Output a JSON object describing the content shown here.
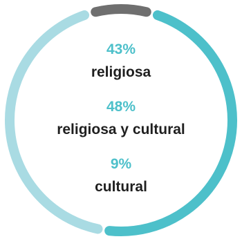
{
  "chart_data": {
    "type": "pie",
    "categories": [
      "religiosa",
      "religiosa y cultural",
      "cultural"
    ],
    "values": [
      43,
      48,
      9
    ],
    "value_labels": [
      "43%",
      "48%",
      "9%"
    ],
    "colors": {
      "religiosa": "#a9dbe3",
      "religiosa y cultural": "#4dc0ca",
      "cultural": "#6f6f6f"
    },
    "label_color": "#4dc0ca",
    "text_color": "#1f1f1f"
  }
}
